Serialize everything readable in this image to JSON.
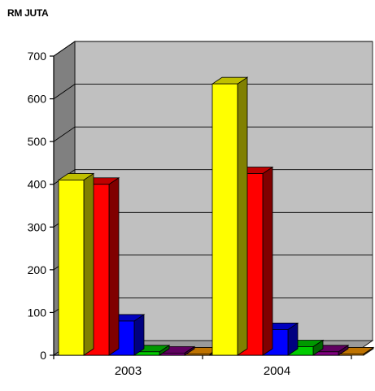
{
  "chart_data": {
    "type": "bar",
    "title": "RM JUTA",
    "xlabel": "",
    "ylabel": "",
    "categories": [
      "2003",
      "2004"
    ],
    "ylim": [
      0,
      700
    ],
    "yticks": [
      0,
      100,
      200,
      300,
      400,
      500,
      600,
      700
    ],
    "grid": true,
    "legend": "none",
    "series": [
      {
        "color": "#ffff00",
        "values": [
          410,
          635
        ]
      },
      {
        "color": "#ff0000",
        "values": [
          400,
          425
        ]
      },
      {
        "color": "#0000ff",
        "values": [
          80,
          60
        ]
      },
      {
        "color": "#00cc00",
        "values": [
          8,
          20
        ]
      },
      {
        "color": "#800080",
        "values": [
          5,
          8
        ]
      },
      {
        "color": "#ff9900",
        "values": [
          3,
          3
        ]
      }
    ],
    "colors": {
      "wall": "#c0c0c0",
      "floor": "#808080",
      "grid": "#000000"
    }
  }
}
